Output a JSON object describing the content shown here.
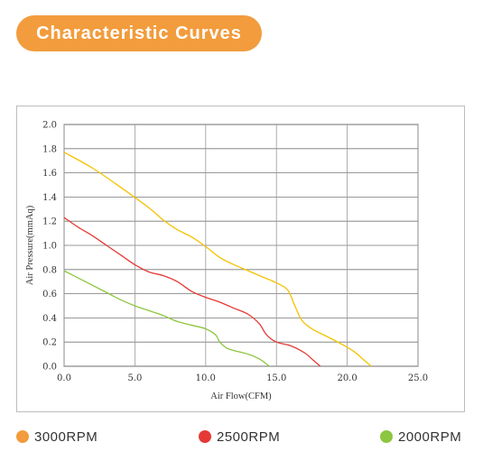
{
  "header": {
    "title": "Characteristic Curves",
    "accent_color": "#F29C3D"
  },
  "chart_data": {
    "type": "line",
    "xlabel": "Air Flow(CFM)",
    "ylabel": "Air Pressure(mmAq)",
    "xlim": [
      0,
      25
    ],
    "ylim": [
      0,
      2
    ],
    "x_ticks": [
      "0.0",
      "5.0",
      "10.0",
      "15.0",
      "20.0",
      "25.0"
    ],
    "y_ticks": [
      "0.0",
      "0.2",
      "0.4",
      "0.6",
      "0.8",
      "1.0",
      "1.2",
      "1.4",
      "1.6",
      "1.8",
      "2.0"
    ],
    "grid": true,
    "legend_placement": "bottom",
    "series": [
      {
        "name": "3000RPM",
        "color": "#F5C200",
        "legend_color": "#F29C3D",
        "points": [
          [
            0,
            1.77
          ],
          [
            2,
            1.64
          ],
          [
            4,
            1.48
          ],
          [
            6,
            1.31
          ],
          [
            7,
            1.21
          ],
          [
            8,
            1.13
          ],
          [
            9,
            1.07
          ],
          [
            10,
            0.99
          ],
          [
            11,
            0.9
          ],
          [
            12,
            0.84
          ],
          [
            13,
            0.79
          ],
          [
            14,
            0.74
          ],
          [
            15,
            0.69
          ],
          [
            15.8,
            0.63
          ],
          [
            16.3,
            0.5
          ],
          [
            16.8,
            0.38
          ],
          [
            17.5,
            0.31
          ],
          [
            18.5,
            0.25
          ],
          [
            19.5,
            0.19
          ],
          [
            20.5,
            0.12
          ],
          [
            21,
            0.07
          ],
          [
            21.7,
            0.0
          ]
        ]
      },
      {
        "name": "2500RPM",
        "color": "#E53935",
        "legend_color": "#E53935",
        "points": [
          [
            0,
            1.23
          ],
          [
            1,
            1.15
          ],
          [
            2,
            1.08
          ],
          [
            3,
            1.0
          ],
          [
            4,
            0.92
          ],
          [
            5,
            0.84
          ],
          [
            6,
            0.78
          ],
          [
            7,
            0.75
          ],
          [
            8,
            0.7
          ],
          [
            9,
            0.62
          ],
          [
            10,
            0.57
          ],
          [
            11,
            0.53
          ],
          [
            12,
            0.48
          ],
          [
            13,
            0.43
          ],
          [
            13.8,
            0.35
          ],
          [
            14.3,
            0.26
          ],
          [
            15,
            0.2
          ],
          [
            16,
            0.17
          ],
          [
            17,
            0.11
          ],
          [
            17.6,
            0.05
          ],
          [
            18.1,
            0.0
          ]
        ]
      },
      {
        "name": "2000RPM",
        "color": "#8DC63F",
        "legend_color": "#8DC63F",
        "points": [
          [
            0,
            0.79
          ],
          [
            1,
            0.73
          ],
          [
            2,
            0.67
          ],
          [
            3,
            0.61
          ],
          [
            4,
            0.55
          ],
          [
            5,
            0.5
          ],
          [
            6,
            0.46
          ],
          [
            7,
            0.42
          ],
          [
            8,
            0.37
          ],
          [
            9,
            0.34
          ],
          [
            10,
            0.31
          ],
          [
            10.7,
            0.26
          ],
          [
            11,
            0.2
          ],
          [
            11.5,
            0.15
          ],
          [
            12,
            0.13
          ],
          [
            13,
            0.1
          ],
          [
            13.8,
            0.06
          ],
          [
            14.5,
            0.0
          ]
        ]
      }
    ]
  }
}
